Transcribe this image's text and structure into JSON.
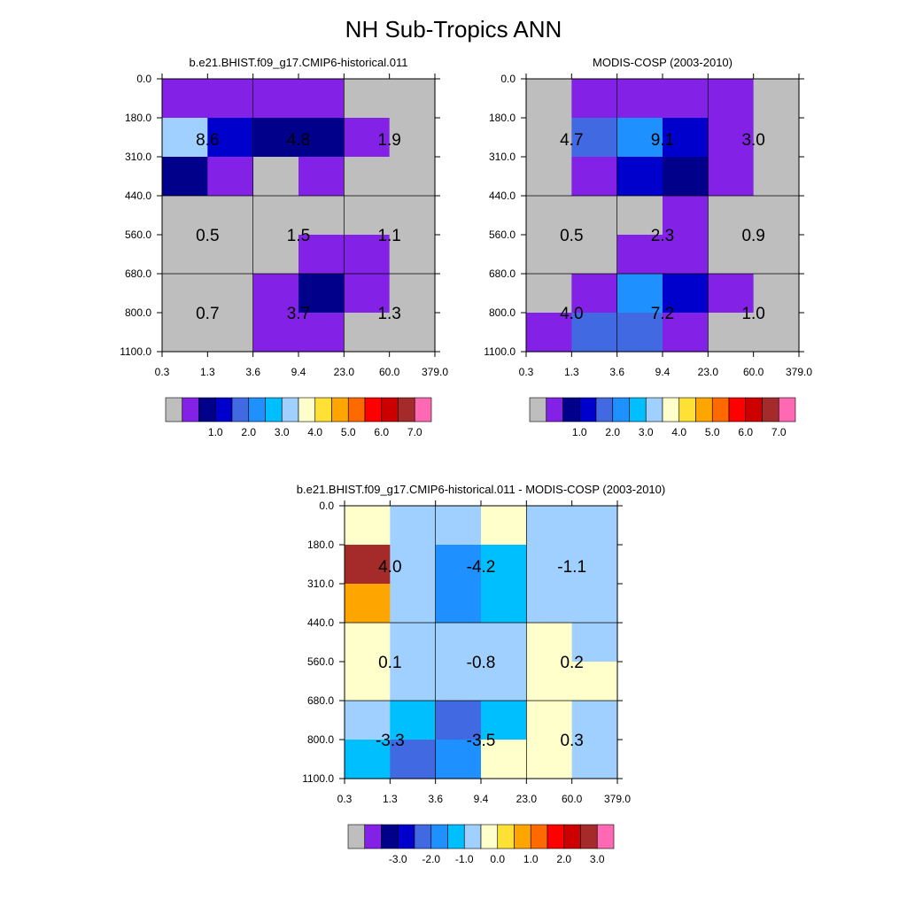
{
  "figure": {
    "title": "NH Sub-Tropics ANN"
  },
  "grid": {
    "x_tick_labels": [
      "0.3",
      "1.3",
      "3.6",
      "9.4",
      "23.0",
      "60.0",
      "379.0"
    ],
    "y_tick_labels": [
      "0.0",
      "180.0",
      "310.0",
      "440.0",
      "560.0",
      "680.0",
      "800.0",
      "1100.0"
    ]
  },
  "chart_data": [
    {
      "type": "heatmap",
      "title": "b.e21.BHIST.f09_g17.CMIP6-historical.011",
      "x_bins": [
        "0.3",
        "1.3",
        "3.6",
        "9.4",
        "23.0",
        "60.0",
        "379.0"
      ],
      "y_bins": [
        "0.0",
        "180.0",
        "310.0",
        "440.0",
        "560.0",
        "680.0",
        "800.0",
        "1100.0"
      ],
      "cell_colors": [
        [
          "#8322E6",
          "#8322E6",
          "#8322E6",
          "#8322E6",
          "#BEBEBE",
          "#BEBEBE"
        ],
        [
          "#A0D0FF",
          "#0000CD",
          "#00008B",
          "#00008B",
          "#8322E6",
          "#BEBEBE"
        ],
        [
          "#00008B",
          "#8322E6",
          "#BEBEBE",
          "#8322E6",
          "#BEBEBE",
          "#BEBEBE"
        ],
        [
          "#BEBEBE",
          "#BEBEBE",
          "#BEBEBE",
          "#BEBEBE",
          "#BEBEBE",
          "#BEBEBE"
        ],
        [
          "#BEBEBE",
          "#BEBEBE",
          "#BEBEBE",
          "#8322E6",
          "#8322E6",
          "#BEBEBE"
        ],
        [
          "#BEBEBE",
          "#BEBEBE",
          "#8322E6",
          "#00008B",
          "#8322E6",
          "#BEBEBE"
        ],
        [
          "#BEBEBE",
          "#BEBEBE",
          "#8322E6",
          "#8322E6",
          "#BEBEBE",
          "#BEBEBE"
        ]
      ],
      "block_values": [
        [
          "8.6",
          "4.8",
          "1.9"
        ],
        [
          "0.5",
          "1.5",
          "1.1"
        ],
        [
          "0.7",
          "3.7",
          "1.3"
        ]
      ],
      "colorbar": {
        "colors": [
          "#BEBEBE",
          "#8322E6",
          "#00008B",
          "#0000CD",
          "#4169E1",
          "#1E90FF",
          "#00BFFF",
          "#A0D0FF",
          "#FFFFCC",
          "#FFE135",
          "#FFA500",
          "#FF6A00",
          "#FF0000",
          "#CD0000",
          "#A52A2A",
          "#FF69B4"
        ],
        "labels": [
          "1.0",
          "2.0",
          "3.0",
          "4.0",
          "5.0",
          "6.0",
          "7.0"
        ]
      }
    },
    {
      "type": "heatmap",
      "title": "MODIS-COSP (2003-2010)",
      "x_bins": [
        "0.3",
        "1.3",
        "3.6",
        "9.4",
        "23.0",
        "60.0",
        "379.0"
      ],
      "y_bins": [
        "0.0",
        "180.0",
        "310.0",
        "440.0",
        "560.0",
        "680.0",
        "800.0",
        "1100.0"
      ],
      "cell_colors": [
        [
          "#BEBEBE",
          "#8322E6",
          "#8322E6",
          "#8322E6",
          "#8322E6",
          "#BEBEBE"
        ],
        [
          "#BEBEBE",
          "#4169E1",
          "#1E90FF",
          "#0000CD",
          "#8322E6",
          "#BEBEBE"
        ],
        [
          "#BEBEBE",
          "#8322E6",
          "#0000CD",
          "#00008B",
          "#8322E6",
          "#BEBEBE"
        ],
        [
          "#BEBEBE",
          "#BEBEBE",
          "#BEBEBE",
          "#8322E6",
          "#BEBEBE",
          "#BEBEBE"
        ],
        [
          "#BEBEBE",
          "#BEBEBE",
          "#8322E6",
          "#8322E6",
          "#BEBEBE",
          "#BEBEBE"
        ],
        [
          "#BEBEBE",
          "#8322E6",
          "#1E90FF",
          "#0000CD",
          "#8322E6",
          "#BEBEBE"
        ],
        [
          "#8322E6",
          "#4169E1",
          "#4169E1",
          "#8322E6",
          "#BEBEBE",
          "#BEBEBE"
        ]
      ],
      "block_values": [
        [
          "4.7",
          "9.1",
          "3.0"
        ],
        [
          "0.5",
          "2.3",
          "0.9"
        ],
        [
          "4.0",
          "7.2",
          "1.0"
        ]
      ],
      "colorbar": {
        "colors": [
          "#BEBEBE",
          "#8322E6",
          "#00008B",
          "#0000CD",
          "#4169E1",
          "#1E90FF",
          "#00BFFF",
          "#A0D0FF",
          "#FFFFCC",
          "#FFE135",
          "#FFA500",
          "#FF6A00",
          "#FF0000",
          "#CD0000",
          "#A52A2A",
          "#FF69B4"
        ],
        "labels": [
          "1.0",
          "2.0",
          "3.0",
          "4.0",
          "5.0",
          "6.0",
          "7.0"
        ]
      }
    },
    {
      "type": "heatmap",
      "title": "b.e21.BHIST.f09_g17.CMIP6-historical.011 - MODIS-COSP (2003-2010)",
      "x_bins": [
        "0.3",
        "1.3",
        "3.6",
        "9.4",
        "23.0",
        "60.0",
        "379.0"
      ],
      "y_bins": [
        "0.0",
        "180.0",
        "310.0",
        "440.0",
        "560.0",
        "680.0",
        "800.0",
        "1100.0"
      ],
      "cell_colors": [
        [
          "#FFFFCC",
          "#A0D0FF",
          "#A0D0FF",
          "#FFFFCC",
          "#A0D0FF",
          "#A0D0FF"
        ],
        [
          "#A52A2A",
          "#A0D0FF",
          "#1E90FF",
          "#00BFFF",
          "#A0D0FF",
          "#A0D0FF"
        ],
        [
          "#FFA500",
          "#A0D0FF",
          "#1E90FF",
          "#00BFFF",
          "#A0D0FF",
          "#A0D0FF"
        ],
        [
          "#FFFFCC",
          "#A0D0FF",
          "#A0D0FF",
          "#A0D0FF",
          "#FFFFCC",
          "#A0D0FF"
        ],
        [
          "#FFFFCC",
          "#A0D0FF",
          "#A0D0FF",
          "#A0D0FF",
          "#FFFFCC",
          "#FFFFCC"
        ],
        [
          "#A0D0FF",
          "#00BFFF",
          "#4169E1",
          "#00BFFF",
          "#FFFFCC",
          "#A0D0FF"
        ],
        [
          "#00BFFF",
          "#4169E1",
          "#1E90FF",
          "#FFFFCC",
          "#FFFFCC",
          "#A0D0FF"
        ]
      ],
      "block_values": [
        [
          "4.0",
          "-4.2",
          "-1.1"
        ],
        [
          "0.1",
          "-0.8",
          "0.2"
        ],
        [
          "-3.3",
          "-3.5",
          "0.3"
        ]
      ],
      "colorbar": {
        "colors": [
          "#BEBEBE",
          "#8322E6",
          "#00008B",
          "#0000CD",
          "#4169E1",
          "#1E90FF",
          "#00BFFF",
          "#A0D0FF",
          "#FFFFCC",
          "#FFE135",
          "#FFA500",
          "#FF6A00",
          "#FF0000",
          "#CD0000",
          "#A52A2A",
          "#FF69B4"
        ],
        "labels": [
          "-3.0",
          "-2.0",
          "-1.0",
          "0.0",
          "1.0",
          "2.0",
          "3.0"
        ]
      }
    }
  ]
}
